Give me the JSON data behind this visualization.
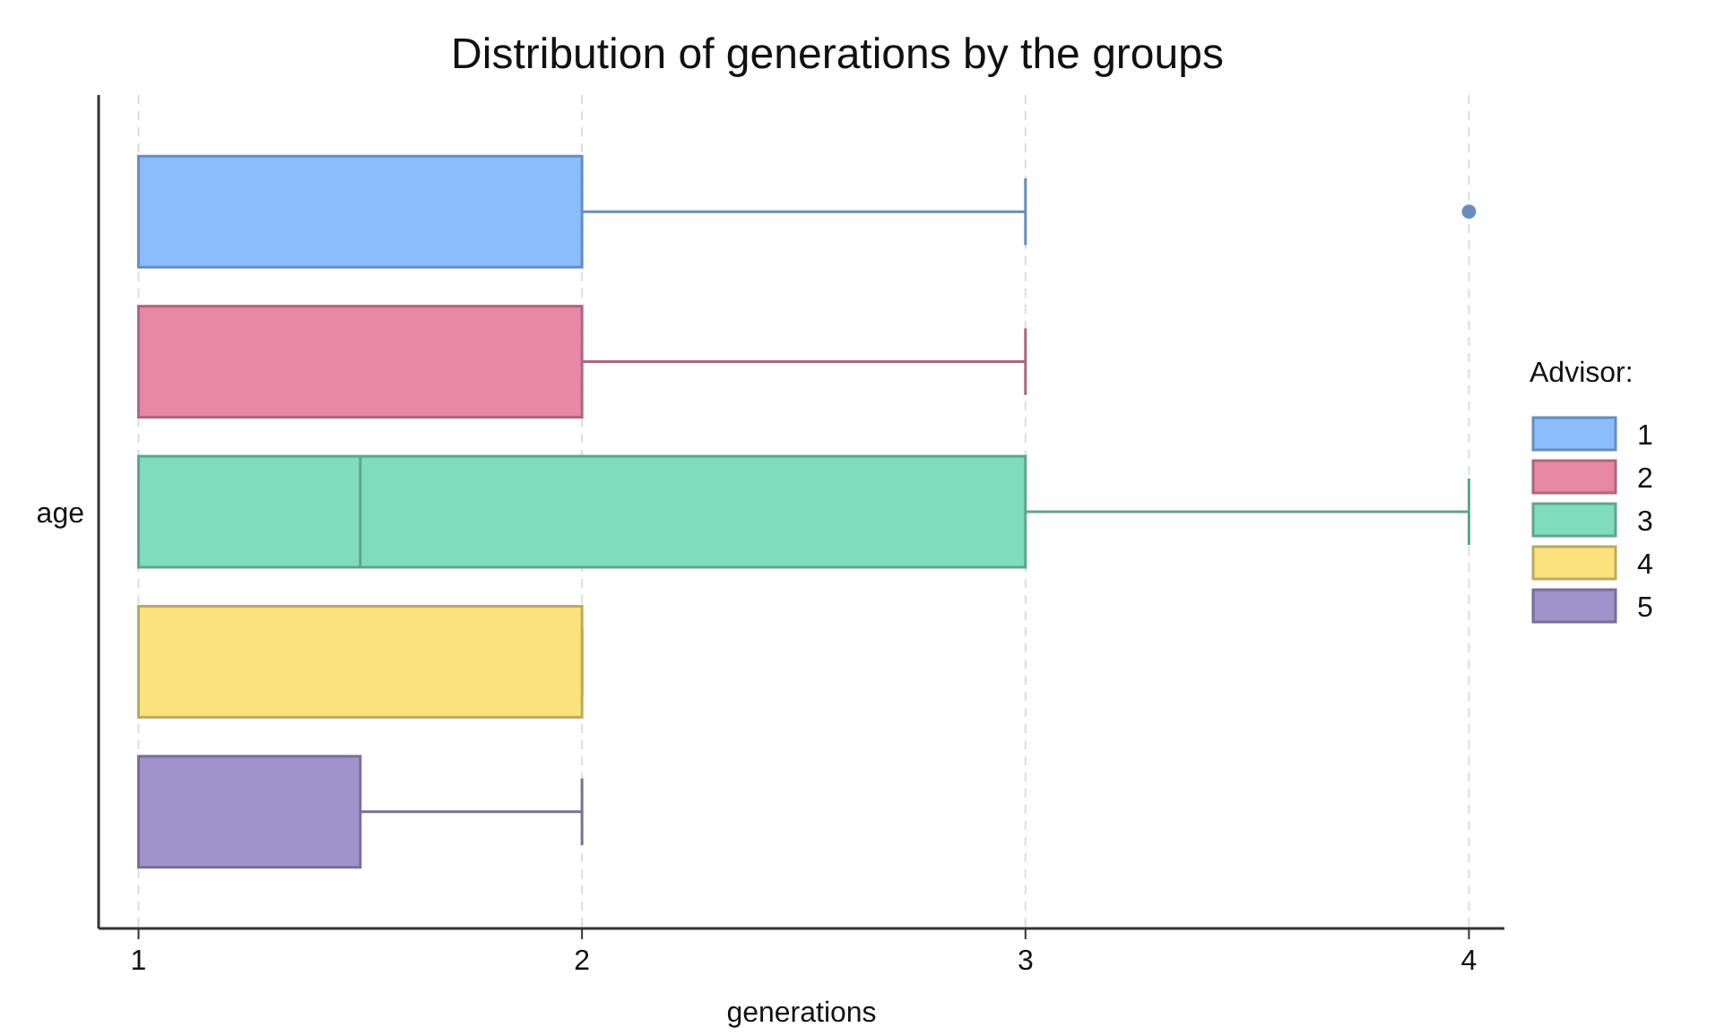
{
  "chart_data": {
    "type": "box",
    "orientation": "horizontal",
    "title": "Distribution of generations by the groups",
    "xlabel": "generations",
    "categories": [
      "age"
    ],
    "xlim": [
      0.91,
      4.08
    ],
    "xticks": [
      1,
      2,
      3,
      4
    ],
    "grid": "x",
    "legend": "right",
    "legend_title": "Advisor:",
    "series": [
      {
        "name": "1",
        "color": "#8bbcfb",
        "boxes": [
          {
            "low": 1,
            "q1": 1,
            "median": 1,
            "q3": 2,
            "high": 3,
            "outliers": [
              4
            ]
          }
        ]
      },
      {
        "name": "2",
        "color": "#e688a6",
        "boxes": [
          {
            "low": 1,
            "q1": 1,
            "median": 1,
            "q3": 2,
            "high": 3
          }
        ]
      },
      {
        "name": "3",
        "color": "#7fdcbc",
        "boxes": [
          {
            "low": 1,
            "q1": 1,
            "median": 1.5,
            "q3": 3,
            "high": 4
          }
        ]
      },
      {
        "name": "4",
        "color": "#fbe27d",
        "boxes": [
          {
            "low": 1,
            "q1": 1,
            "median": 1,
            "q3": 2,
            "high": 2
          }
        ]
      },
      {
        "name": "5",
        "color": "#a093cb",
        "boxes": [
          {
            "low": 1,
            "q1": 1,
            "median": 1,
            "q3": 1.5,
            "high": 2
          }
        ]
      }
    ]
  }
}
